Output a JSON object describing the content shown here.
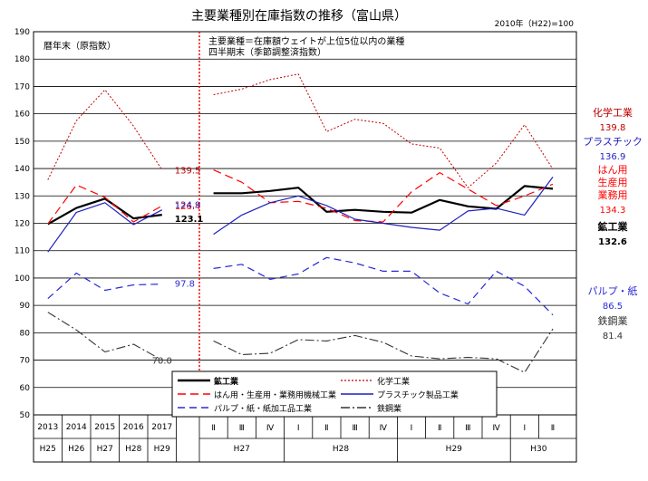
{
  "header": {
    "title": "主要業種別在庫指数の推移（富山県）",
    "base_note": "2010年（H22)=100"
  },
  "annotations": {
    "left_panel": "暦年末（原指数）",
    "right_panel_line1": "主要業種＝在庫額ウェイトが上位5位以内の業種",
    "right_panel_line2": "四半期末（季節調整済指数）"
  },
  "colors": {
    "mining": "#000000",
    "chemical": "#c00000",
    "general_machinery": "#ff0000",
    "plastic": "#1f1fbf",
    "pulp_paper": "#2a2ad6",
    "steel": "#333333",
    "divider": "#ff0000"
  },
  "chart_data": {
    "type": "line",
    "ylim": [
      50,
      190
    ],
    "y_ticks": [
      "50",
      "60",
      "70",
      "80",
      "90",
      "100",
      "110",
      "120",
      "130",
      "140",
      "150",
      "160",
      "170",
      "180",
      "190"
    ],
    "annual": {
      "years": [
        "2013",
        "2014",
        "2015",
        "2016",
        "2017"
      ],
      "eras": [
        "H25",
        "H26",
        "H27",
        "H28",
        "H29"
      ]
    },
    "quarterly": {
      "quarters": [
        "Ⅱ",
        "Ⅲ",
        "Ⅳ",
        "Ⅰ",
        "Ⅱ",
        "Ⅲ",
        "Ⅳ",
        "Ⅰ",
        "Ⅱ",
        "Ⅲ",
        "Ⅳ",
        "Ⅰ",
        "Ⅱ"
      ],
      "era_groups": [
        {
          "label": "H27",
          "span": 3
        },
        {
          "label": "H28",
          "span": 4
        },
        {
          "label": "H29",
          "span": 4
        },
        {
          "label": "H30",
          "span": 2
        }
      ]
    },
    "series": [
      {
        "key": "mining",
        "name": "鉱工業",
        "color": "#000000",
        "dash": "",
        "width": 2.2,
        "annual": [
          119.7,
          125.6,
          129.0,
          121.8,
          123.1
        ],
        "quarterly": [
          131.0,
          131.0,
          131.8,
          133.0,
          124.2,
          124.9,
          124.2,
          123.9,
          128.5,
          126.2,
          125.3,
          133.6,
          132.6
        ]
      },
      {
        "key": "chemical",
        "name": "化学工業",
        "color": "#c00000",
        "dash": "2,2",
        "width": 1,
        "annual": [
          135.9,
          157.5,
          168.8,
          155.5,
          139.5
        ],
        "quarterly": [
          167.0,
          169.0,
          172.5,
          174.5,
          153.5,
          158.0,
          156.5,
          149.0,
          147.5,
          133.0,
          142.0,
          156.0,
          139.8
        ]
      },
      {
        "key": "general_machinery",
        "name": "はん用・生産用・業務用機械工業",
        "color": "#ff0000",
        "dash": "9,5",
        "width": 1.2,
        "annual": [
          119.8,
          134.0,
          129.5,
          120.5,
          126.4
        ],
        "quarterly": [
          139.5,
          135.0,
          127.5,
          128.0,
          125.5,
          121.0,
          120.5,
          131.5,
          138.5,
          132.5,
          126.5,
          130.0,
          134.3
        ]
      },
      {
        "key": "plastic",
        "name": "プラスチック製品工業",
        "color": "#1f1fbf",
        "dash": "",
        "width": 1.2,
        "annual": [
          109.5,
          124.0,
          127.5,
          119.5,
          124.9
        ],
        "quarterly": [
          116.0,
          123.0,
          127.5,
          130.0,
          126.5,
          121.5,
          120.0,
          118.5,
          117.5,
          124.5,
          125.5,
          123.0,
          136.9
        ]
      },
      {
        "key": "pulp_paper",
        "name": "パルプ・紙・紙加工品工業",
        "color": "#2a2ad6",
        "dash": "8,5",
        "width": 1.2,
        "annual": [
          92.5,
          101.8,
          95.5,
          97.5,
          97.8
        ],
        "quarterly": [
          103.5,
          105.0,
          99.5,
          101.5,
          107.5,
          105.5,
          102.5,
          102.5,
          94.5,
          90.5,
          102.5,
          97.0,
          86.5
        ]
      },
      {
        "key": "steel",
        "name": "鉄鋼業",
        "color": "#333333",
        "dash": "10,3,2,3",
        "width": 1.1,
        "annual": [
          87.5,
          81.0,
          73.0,
          75.8,
          70.0
        ],
        "quarterly": [
          77.0,
          72.0,
          72.5,
          77.5,
          77.0,
          79.0,
          76.5,
          71.5,
          70.5,
          71.0,
          70.5,
          65.5,
          81.4
        ]
      }
    ],
    "annual_value_labels": [
      {
        "series": "chemical",
        "text": "139.5",
        "color": "#c00000",
        "bold": false
      },
      {
        "series": "general_machinery",
        "text": "126.4",
        "color": "#ff0000",
        "bold": false
      },
      {
        "series": "plastic",
        "text": "124.9",
        "color": "#1f1fbf",
        "bold": false
      },
      {
        "series": "mining",
        "text": "123.1",
        "color": "#000000",
        "bold": true
      },
      {
        "series": "pulp_paper",
        "text": "97.8",
        "color": "#2a2ad6",
        "bold": false
      },
      {
        "series": "steel",
        "text": "70.0",
        "color": "#333333",
        "bold": false
      }
    ],
    "right_labels": [
      {
        "lines": [
          "化学工業"
        ],
        "value": "139.8",
        "color": "#c00000",
        "bold": false,
        "value_bold": false
      },
      {
        "lines": [
          "プラスチック"
        ],
        "value": "136.9",
        "color": "#1f1fbf",
        "bold": false,
        "value_bold": false
      },
      {
        "lines": [
          "はん用",
          "生産用",
          "業務用"
        ],
        "value": "134.3",
        "color": "#ff0000",
        "bold": false,
        "value_bold": false
      },
      {
        "lines": [
          "鉱工業"
        ],
        "value": "132.6",
        "color": "#000000",
        "bold": true,
        "value_bold": true
      },
      {
        "lines": [
          "パルプ・紙"
        ],
        "value": "86.5",
        "color": "#2a2ad6",
        "bold": false,
        "value_bold": false
      },
      {
        "lines": [
          "鉄鋼業"
        ],
        "value": "81.4",
        "color": "#333333",
        "bold": false,
        "value_bold": false
      }
    ],
    "legend_order": [
      "mining",
      "chemical",
      "general_machinery",
      "plastic",
      "pulp_paper",
      "steel"
    ]
  }
}
